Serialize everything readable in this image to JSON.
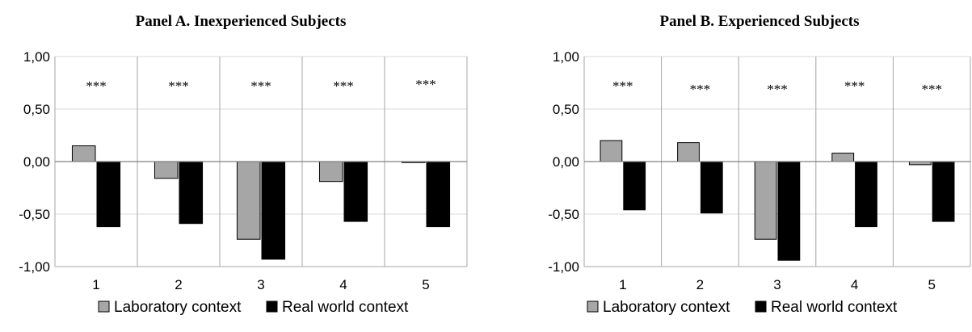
{
  "chart_data": [
    {
      "type": "bar",
      "title": "Panel A. Inexperienced Subjects",
      "categories": [
        "1",
        "2",
        "3",
        "4",
        "5"
      ],
      "y_ticks": [
        "1,00",
        "0,50",
        "0,00",
        "-0,50",
        "-1,00"
      ],
      "ylim": [
        -1.0,
        1.0
      ],
      "significance": [
        "***",
        "***",
        "***",
        "***",
        "***"
      ],
      "series": [
        {
          "name": "Laboratory context",
          "color": "#a6a6a6",
          "values": [
            0.15,
            -0.16,
            -0.74,
            -0.19,
            -0.01
          ]
        },
        {
          "name": "Real world context",
          "color": "#000000",
          "values": [
            -0.62,
            -0.59,
            -0.93,
            -0.57,
            -0.62
          ]
        }
      ],
      "grid": true,
      "legend": "bottom"
    },
    {
      "type": "bar",
      "title": "Panel B. Experienced Subjects",
      "categories": [
        "1",
        "2",
        "3",
        "4",
        "5"
      ],
      "y_ticks": [
        "1,00",
        "0,50",
        "0,00",
        "-0,50",
        "-1,00"
      ],
      "ylim": [
        -1.0,
        1.0
      ],
      "significance": [
        "***",
        "***",
        "***",
        "***",
        "***"
      ],
      "series": [
        {
          "name": "Laboratory context",
          "color": "#a6a6a6",
          "values": [
            0.2,
            0.18,
            -0.74,
            0.08,
            -0.03
          ]
        },
        {
          "name": "Real world context",
          "color": "#000000",
          "values": [
            -0.46,
            -0.49,
            -0.94,
            -0.62,
            -0.57
          ]
        }
      ],
      "grid": true,
      "legend": "bottom"
    }
  ]
}
